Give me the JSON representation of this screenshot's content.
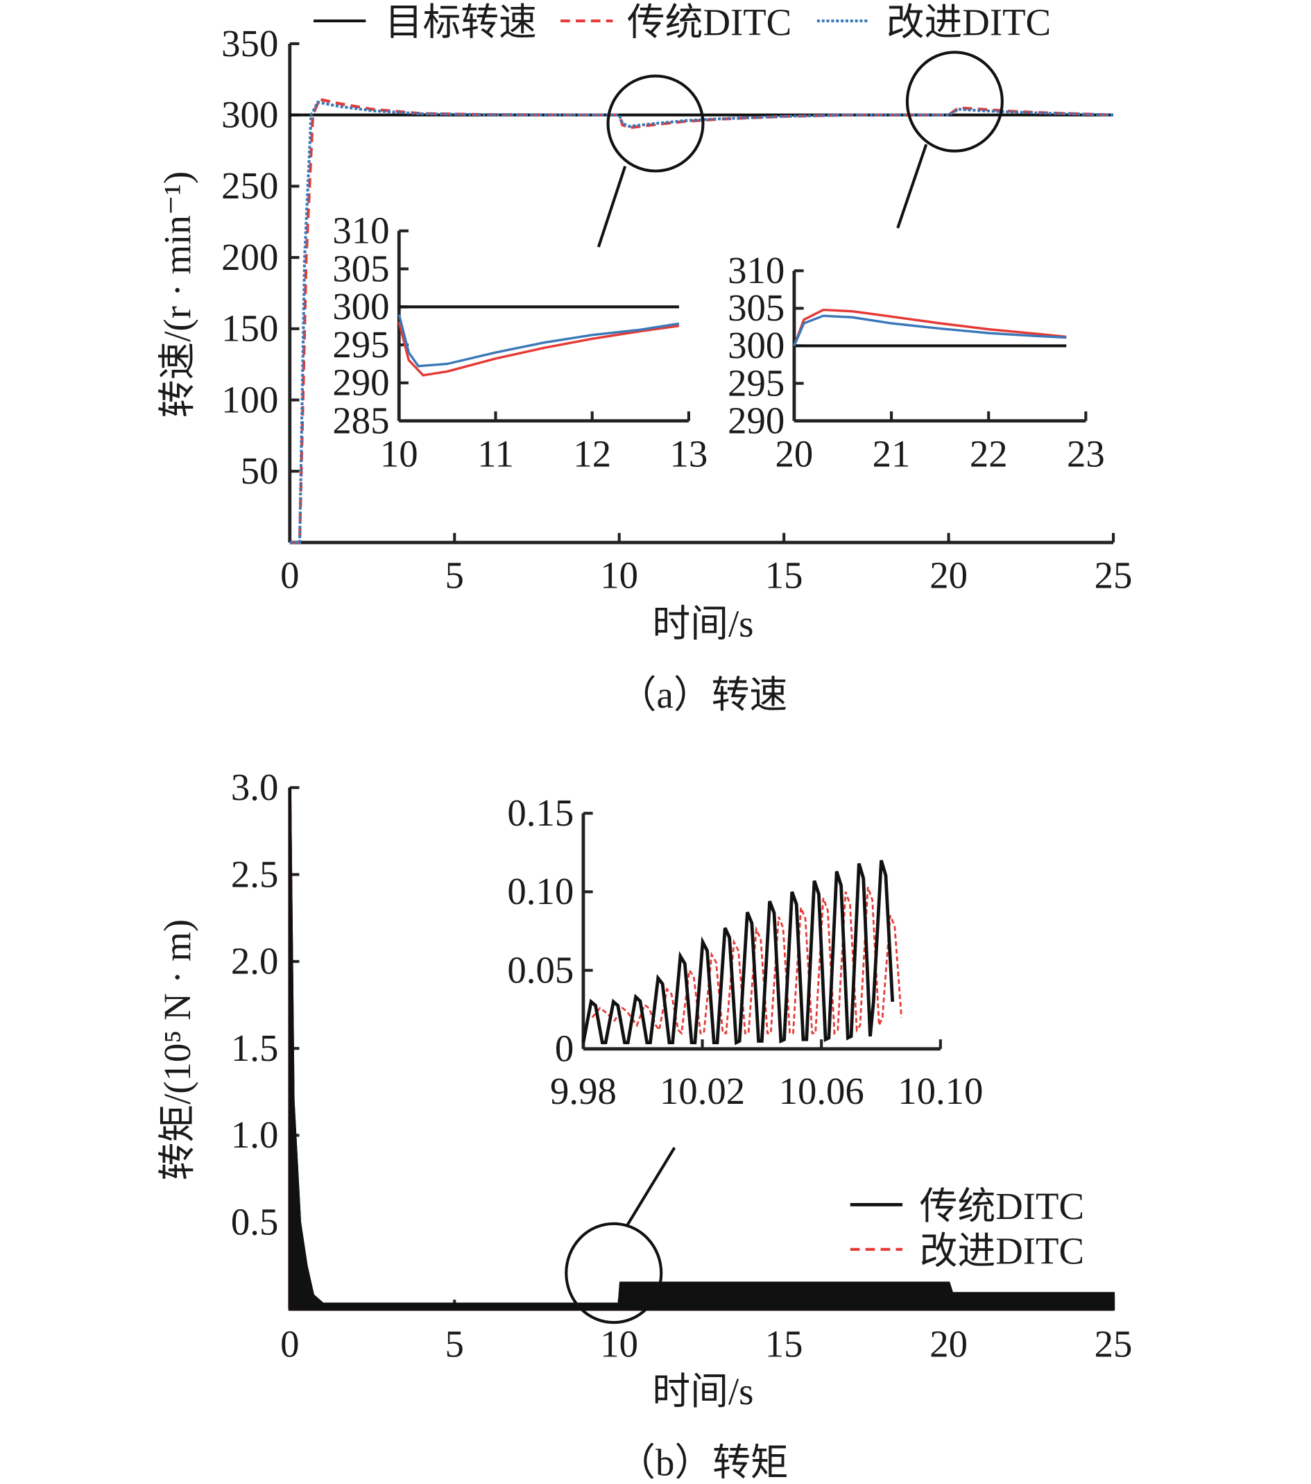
{
  "chart_data": [
    {
      "type": "line",
      "panel": "a",
      "caption": "（a）转速",
      "xlabel": "时间/s",
      "ylabel": "转速/(r · min⁻¹)",
      "xlim": [
        0,
        25
      ],
      "ylim": [
        0,
        350
      ],
      "xticks": [
        0,
        5,
        10,
        15,
        20,
        25
      ],
      "yticks": [
        50,
        100,
        150,
        200,
        250,
        300,
        350
      ],
      "legend": {
        "placement": "top",
        "entries": [
          "目标转速",
          "传统DITC",
          "改进DITC"
        ]
      },
      "colors": {
        "target": "#111111",
        "traditional": "#e53935",
        "improved": "#3a78b8"
      },
      "series": [
        {
          "name": "目标转速",
          "points": [
            [
              0,
              300
            ],
            [
              25,
              300
            ]
          ]
        },
        {
          "name": "传统DITC",
          "points": [
            [
              0,
              0
            ],
            [
              0.3,
              0
            ],
            [
              0.5,
              200
            ],
            [
              0.7,
              300
            ],
            [
              0.9,
              311
            ],
            [
              1.5,
              308
            ],
            [
              2.5,
              304
            ],
            [
              4,
              301
            ],
            [
              6,
              300.3
            ],
            [
              10,
              300
            ],
            [
              10.1,
              293
            ],
            [
              10.3,
              291
            ],
            [
              11,
              293
            ],
            [
              12,
              295.5
            ],
            [
              13,
              297
            ],
            [
              15,
              299
            ],
            [
              17,
              300
            ],
            [
              20,
              300
            ],
            [
              20.3,
              305
            ],
            [
              21,
              304
            ],
            [
              22,
              302.5
            ],
            [
              23,
              301.5
            ],
            [
              25,
              300
            ]
          ]
        },
        {
          "name": "改进DITC",
          "points": [
            [
              0,
              0
            ],
            [
              0.3,
              0
            ],
            [
              0.45,
              200
            ],
            [
              0.65,
              300
            ],
            [
              0.85,
              309
            ],
            [
              1.5,
              306
            ],
            [
              2.5,
              303
            ],
            [
              4,
              300.8
            ],
            [
              6,
              300.2
            ],
            [
              10,
              300
            ],
            [
              10.1,
              294
            ],
            [
              10.3,
              292
            ],
            [
              11,
              293.8
            ],
            [
              12,
              296
            ],
            [
              13,
              297.3
            ],
            [
              15,
              299
            ],
            [
              17,
              300
            ],
            [
              20,
              300
            ],
            [
              20.3,
              304
            ],
            [
              21,
              303
            ],
            [
              22,
              302
            ],
            [
              23,
              301.2
            ],
            [
              25,
              300
            ]
          ]
        }
      ],
      "insets": [
        {
          "xlim": [
            10,
            13
          ],
          "ylim": [
            285,
            310
          ],
          "xticks": [
            10,
            11,
            12,
            13
          ],
          "yticks": [
            285,
            290,
            295,
            300,
            305,
            310
          ],
          "series": [
            {
              "name": "目标转速",
              "points": [
                [
                  10,
                  300
                ],
                [
                  12.9,
                  300
                ]
              ]
            },
            {
              "name": "传统DITC",
              "points": [
                [
                  10,
                  298
                ],
                [
                  10.1,
                  293
                ],
                [
                  10.25,
                  291
                ],
                [
                  10.5,
                  291.5
                ],
                [
                  11,
                  293.2
                ],
                [
                  11.5,
                  294.6
                ],
                [
                  12,
                  295.8
                ],
                [
                  12.5,
                  296.8
                ],
                [
                  12.9,
                  297.5
                ]
              ]
            },
            {
              "name": "改进DITC",
              "points": [
                [
                  10,
                  299
                ],
                [
                  10.1,
                  294
                ],
                [
                  10.2,
                  292.2
                ],
                [
                  10.5,
                  292.5
                ],
                [
                  11,
                  294
                ],
                [
                  11.5,
                  295.3
                ],
                [
                  12,
                  296.3
                ],
                [
                  12.5,
                  297
                ],
                [
                  12.9,
                  297.8
                ]
              ]
            }
          ]
        },
        {
          "xlim": [
            20,
            23
          ],
          "ylim": [
            290,
            310
          ],
          "xticks": [
            20,
            21,
            22,
            23
          ],
          "yticks": [
            290,
            295,
            300,
            305,
            310
          ],
          "series": [
            {
              "name": "目标转速",
              "points": [
                [
                  20,
                  300
                ],
                [
                  22.8,
                  300
                ]
              ]
            },
            {
              "name": "传统DITC",
              "points": [
                [
                  20,
                  300
                ],
                [
                  20.1,
                  303.5
                ],
                [
                  20.3,
                  304.8
                ],
                [
                  20.6,
                  304.6
                ],
                [
                  21,
                  303.9
                ],
                [
                  21.5,
                  303
                ],
                [
                  22,
                  302.2
                ],
                [
                  22.5,
                  301.6
                ],
                [
                  22.8,
                  301.2
                ]
              ]
            },
            {
              "name": "改进DITC",
              "points": [
                [
                  20,
                  300
                ],
                [
                  20.1,
                  303
                ],
                [
                  20.3,
                  304
                ],
                [
                  20.6,
                  303.8
                ],
                [
                  21,
                  303
                ],
                [
                  21.5,
                  302.3
                ],
                [
                  22,
                  301.7
                ],
                [
                  22.5,
                  301.3
                ],
                [
                  22.8,
                  301.1
                ]
              ]
            }
          ]
        }
      ]
    },
    {
      "type": "line",
      "panel": "b",
      "caption": "（b）转矩",
      "xlabel": "时间/s",
      "ylabel": "转矩/(10⁵ N · m)",
      "xlim": [
        0,
        25
      ],
      "ylim": [
        0,
        3.0
      ],
      "xticks": [
        0,
        5,
        10,
        15,
        20,
        25
      ],
      "yticks": [
        "0.5",
        "1.0",
        "1.5",
        "2.0",
        "2.5",
        "3.0"
      ],
      "legend": {
        "placement": "right",
        "entries": [
          "传统DITC",
          "改进DITC"
        ]
      },
      "colors": {
        "traditional": "#111111",
        "improved": "#e53935"
      },
      "series": [
        {
          "name": "传统DITC",
          "upper": [
            [
              0,
              3.0
            ],
            [
              0.1,
              1.2
            ],
            [
              0.3,
              0.5
            ],
            [
              0.5,
              0.25
            ],
            [
              0.7,
              0.08
            ],
            [
              1,
              0.03
            ],
            [
              10,
              0.03
            ],
            [
              10.05,
              0.15
            ],
            [
              20,
              0.15
            ],
            [
              20.1,
              0.09
            ],
            [
              25,
              0.09
            ]
          ],
          "lower": [
            [
              0,
              0
            ],
            [
              10,
              0.0
            ],
            [
              25,
              0.0
            ]
          ]
        },
        {
          "name": "改进DITC",
          "upper": [
            [
              0,
              3.0
            ],
            [
              0.1,
              1.0
            ],
            [
              0.3,
              0.35
            ],
            [
              0.5,
              0.12
            ],
            [
              0.8,
              0.03
            ],
            [
              10,
              0.025
            ],
            [
              10.05,
              0.13
            ],
            [
              20,
              0.13
            ],
            [
              20.1,
              0.07
            ],
            [
              25,
              0.07
            ]
          ],
          "lower": [
            [
              0,
              0
            ],
            [
              25,
              0
            ]
          ]
        }
      ],
      "inset": {
        "xlim": [
          9.98,
          10.1
        ],
        "ylim": [
          0,
          0.15
        ],
        "xticks": [
          "9.98",
          "10.02",
          "10.06",
          "10.10"
        ],
        "yticks": [
          "0",
          "0.05",
          "0.10",
          "0.15"
        ],
        "period": 0.0075,
        "start": 9.98,
        "traditional_peaks": [
          0.03,
          0.03,
          0.033,
          0.045,
          0.059,
          0.068,
          0.077,
          0.087,
          0.094,
          0.1,
          0.107,
          0.113,
          0.118,
          0.12
        ],
        "traditional_troughs": [
          0.004,
          0.004,
          0.004,
          0.004,
          0.004,
          0.004,
          0.004,
          0.005,
          0.005,
          0.006,
          0.006,
          0.007,
          0.008,
          0.03
        ],
        "improved_peaks": [
          0.026,
          0.026,
          0.028,
          0.038,
          0.05,
          0.06,
          0.068,
          0.076,
          0.084,
          0.09,
          0.096,
          0.1,
          0.103,
          0.085
        ],
        "improved_troughs": [
          0.02,
          0.018,
          0.015,
          0.012,
          0.01,
          0.01,
          0.01,
          0.01,
          0.01,
          0.01,
          0.01,
          0.012,
          0.015,
          0.02
        ]
      }
    }
  ]
}
